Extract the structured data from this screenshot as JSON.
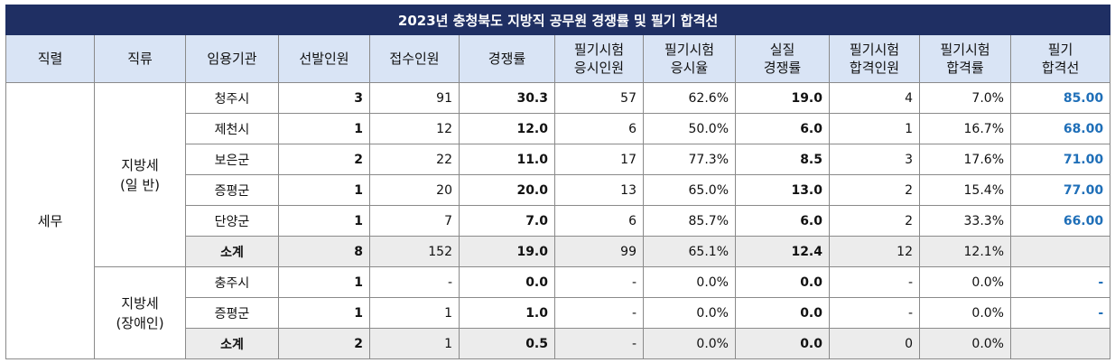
{
  "title": "2023년 충청북도 지방직 공무원 경쟁률 및 필기 합격선",
  "headers": [
    [
      "직렬"
    ],
    [
      "직류"
    ],
    [
      "임용기관"
    ],
    [
      "선발인원"
    ],
    [
      "접수인원"
    ],
    [
      "경쟁률"
    ],
    [
      "필기시험",
      "응시인원"
    ],
    [
      "필기시험",
      "응시율"
    ],
    [
      "실질",
      "경쟁률"
    ],
    [
      "필기시험",
      "합격인원"
    ],
    [
      "필기시험",
      "합격률"
    ],
    [
      "필기",
      "합격선"
    ]
  ],
  "series_name": "세무",
  "groups": [
    {
      "name_lines": [
        "지방세",
        "(일 반)"
      ],
      "rows": [
        {
          "agency": "청주시",
          "selected": "3",
          "applied": "91",
          "ratio": "30.3",
          "exam_takers": "57",
          "exam_rate": "62.6%",
          "real_ratio": "19.0",
          "passed": "4",
          "pass_rate": "7.0%",
          "cutoff": "85.00"
        },
        {
          "agency": "제천시",
          "selected": "1",
          "applied": "12",
          "ratio": "12.0",
          "exam_takers": "6",
          "exam_rate": "50.0%",
          "real_ratio": "6.0",
          "passed": "1",
          "pass_rate": "16.7%",
          "cutoff": "68.00"
        },
        {
          "agency": "보은군",
          "selected": "2",
          "applied": "22",
          "ratio": "11.0",
          "exam_takers": "17",
          "exam_rate": "77.3%",
          "real_ratio": "8.5",
          "passed": "3",
          "pass_rate": "17.6%",
          "cutoff": "71.00"
        },
        {
          "agency": "증평군",
          "selected": "1",
          "applied": "20",
          "ratio": "20.0",
          "exam_takers": "13",
          "exam_rate": "65.0%",
          "real_ratio": "13.0",
          "passed": "2",
          "pass_rate": "15.4%",
          "cutoff": "77.00"
        },
        {
          "agency": "단양군",
          "selected": "1",
          "applied": "7",
          "ratio": "7.0",
          "exam_takers": "6",
          "exam_rate": "85.7%",
          "real_ratio": "6.0",
          "passed": "2",
          "pass_rate": "33.3%",
          "cutoff": "66.00"
        }
      ],
      "subtotal": {
        "agency": "소계",
        "selected": "8",
        "applied": "152",
        "ratio": "19.0",
        "exam_takers": "99",
        "exam_rate": "65.1%",
        "real_ratio": "12.4",
        "passed": "12",
        "pass_rate": "12.1%",
        "cutoff": ""
      }
    },
    {
      "name_lines": [
        "지방세",
        "(장애인)"
      ],
      "rows": [
        {
          "agency": "충주시",
          "selected": "1",
          "applied": "-",
          "ratio": "0.0",
          "exam_takers": "-",
          "exam_rate": "0.0%",
          "real_ratio": "0.0",
          "passed": "-",
          "pass_rate": "0.0%",
          "cutoff": "-"
        },
        {
          "agency": "증평군",
          "selected": "1",
          "applied": "1",
          "ratio": "1.0",
          "exam_takers": "-",
          "exam_rate": "0.0%",
          "real_ratio": "0.0",
          "passed": "-",
          "pass_rate": "0.0%",
          "cutoff": "-"
        }
      ],
      "subtotal": {
        "agency": "소계",
        "selected": "2",
        "applied": "1",
        "ratio": "0.5",
        "exam_takers": "-",
        "exam_rate": "0.0%",
        "real_ratio": "0.0",
        "passed": "0",
        "pass_rate": "0.0%",
        "cutoff": ""
      }
    }
  ],
  "colors": {
    "title_bg": "#1f2f63",
    "header_bg": "#d9e4f5",
    "cutoff_text": "#1f6fb8",
    "subtotal_bg": "#ececec"
  }
}
